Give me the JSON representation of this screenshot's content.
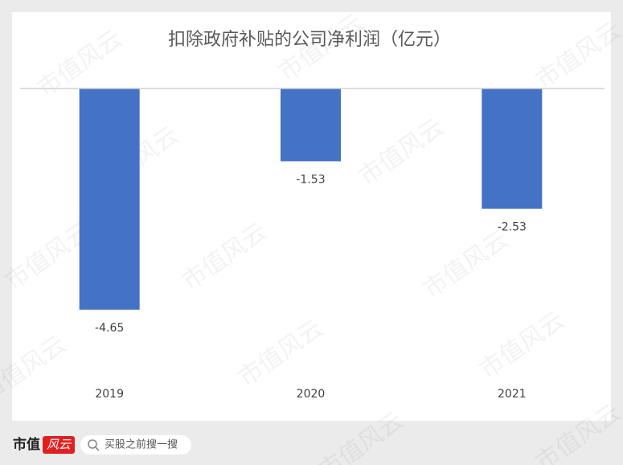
{
  "chart_data": {
    "type": "bar",
    "title": "扣除政府补贴的公司净利润（亿元）",
    "categories": [
      "2019",
      "2020",
      "2021"
    ],
    "values": [
      -4.65,
      -1.53,
      -2.53
    ],
    "color": "#4472c4",
    "ylim": [
      -5,
      0
    ]
  },
  "footer": {
    "logo_left": "市值",
    "logo_right": "风云",
    "search": "买股之前搜一搜"
  },
  "watermark": "市值风云"
}
